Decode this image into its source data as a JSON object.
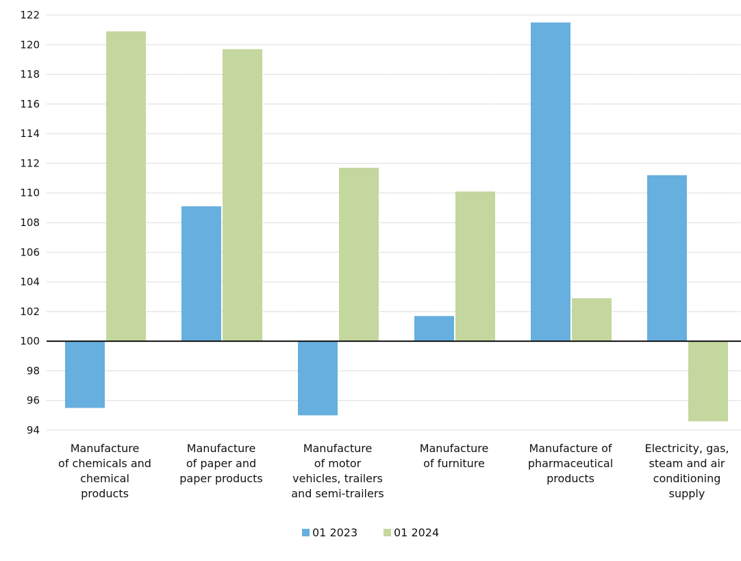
{
  "chart_data": {
    "type": "bar",
    "categories": [
      [
        "Manufacture",
        "of chemicals and",
        "chemical",
        "products"
      ],
      [
        "Manufacture",
        "of paper and",
        "paper products"
      ],
      [
        "Manufacture",
        "of motor",
        "vehicles, trailers",
        "and semi-trailers"
      ],
      [
        "Manufacture",
        "of furniture"
      ],
      [
        "Manufacture of",
        "pharmaceutical",
        "products"
      ],
      [
        "Electricity, gas,",
        "steam and air",
        "conditioning",
        "supply"
      ]
    ],
    "series": [
      {
        "name": "01 2023",
        "color": "#66afdf",
        "values": [
          95.5,
          109.1,
          95.0,
          101.7,
          121.5,
          111.2
        ]
      },
      {
        "name": "01 2024",
        "color": "#c4d79e",
        "values": [
          120.9,
          119.7,
          111.7,
          110.1,
          102.9,
          94.6
        ]
      }
    ],
    "ylim": [
      94,
      122
    ],
    "ytick_step": 2,
    "baseline": 100,
    "grid": true,
    "legend_position": "bottom"
  }
}
